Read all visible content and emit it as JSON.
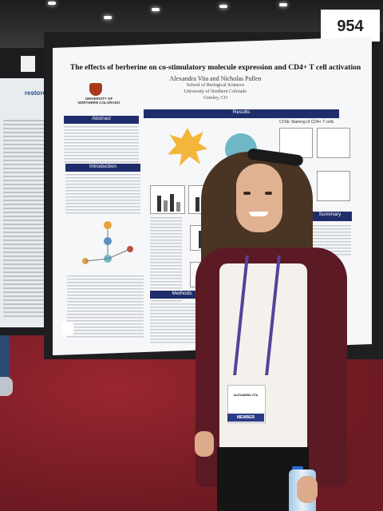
{
  "board_number": "954",
  "small_tag": "",
  "poster": {
    "title": "The effects of berberine on co-stimulatory molecule expression and CD4+ T cell activation",
    "authors": "Alexandra Vita and Nicholas Pullen",
    "affiliation": [
      "School of Biological Sciences",
      "University of Northern Colorado",
      "Greeley, CO"
    ],
    "logo_text": "UNIVERSITY OF NORTHERN COLORADO",
    "sections": {
      "abstract": "Abstract",
      "introduction": "Introduction",
      "results": "Results",
      "summary": "Summary",
      "methods": "Methods",
      "cfse": "CFSE Staining of CD4+ T cells"
    }
  },
  "left_poster_title": "restore",
  "badge": {
    "name": "ALEXANDRA VITA",
    "label": "MEMBER"
  },
  "colors": {
    "section_bar": "#1f2d6a",
    "carpet": "#7a1e27",
    "cardigan": "#5b1a24",
    "lanyard": "#5a3f9a"
  }
}
